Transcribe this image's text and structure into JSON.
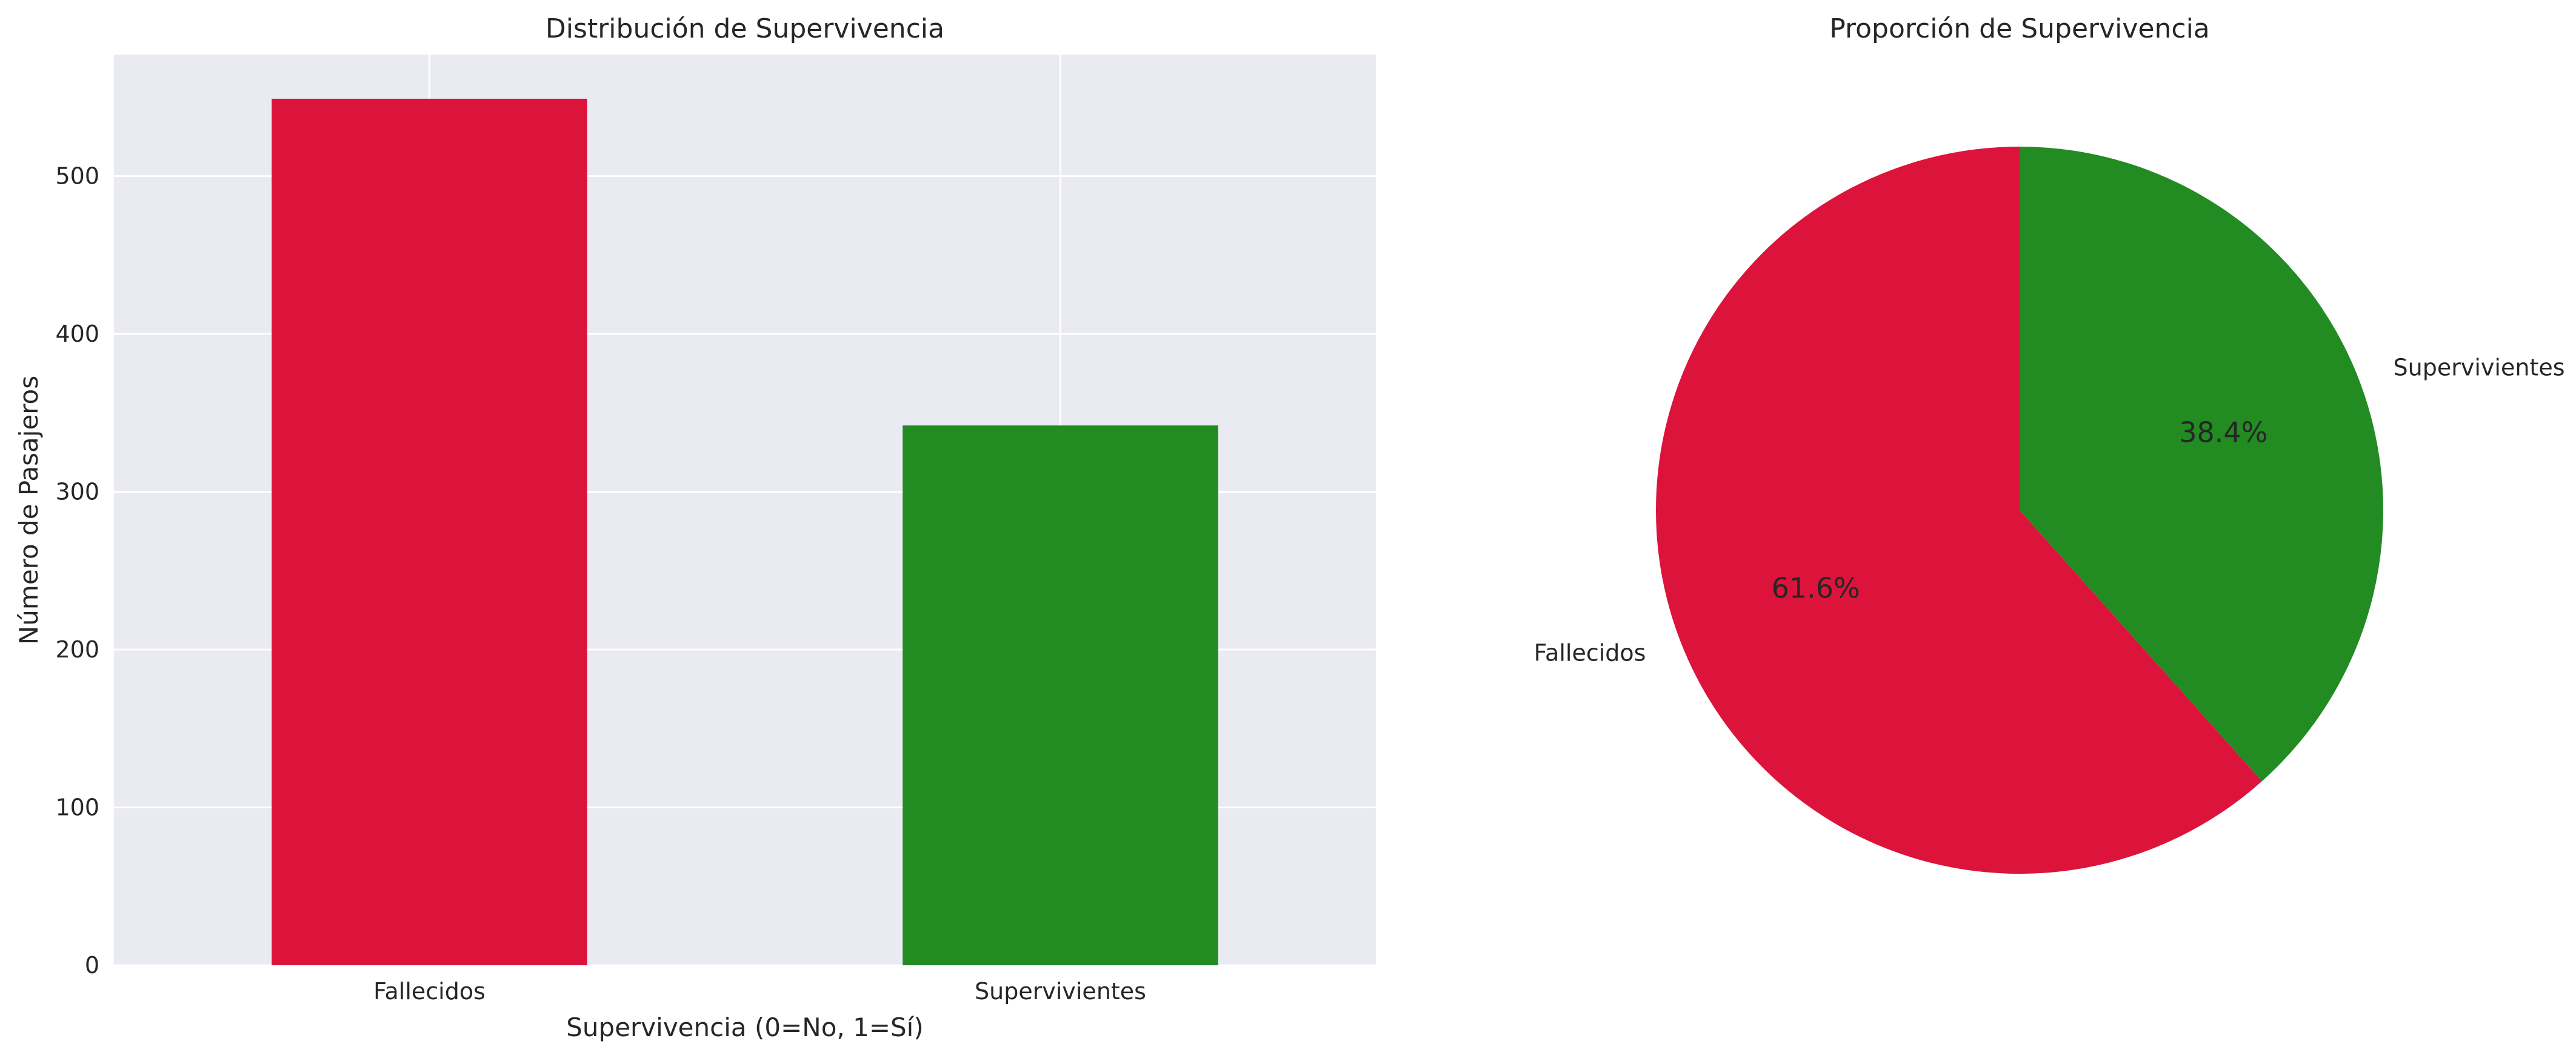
{
  "chart_data": [
    {
      "type": "bar",
      "title": "Distribución de Supervivencia",
      "xlabel": "Supervivencia (0=No, 1=Sí)",
      "ylabel": "Número de Pasajeros",
      "categories": [
        "Fallecidos",
        "Supervivientes"
      ],
      "values": [
        549,
        342
      ],
      "colors": [
        "#dc143c",
        "#228b22"
      ],
      "ylim": [
        0,
        577
      ],
      "yticks": [
        0,
        100,
        200,
        300,
        400,
        500
      ],
      "grid": true,
      "background": "#eaeaf2"
    },
    {
      "type": "pie",
      "title": "Proporción de Supervivencia",
      "labels": [
        "Fallecidos",
        "Supervivientes"
      ],
      "values": [
        549,
        342
      ],
      "percent_labels": [
        "61.6%",
        "38.4%"
      ],
      "colors": [
        "#dc143c",
        "#228b22"
      ],
      "start_angle": 90,
      "direction": "counterclockwise"
    }
  ]
}
